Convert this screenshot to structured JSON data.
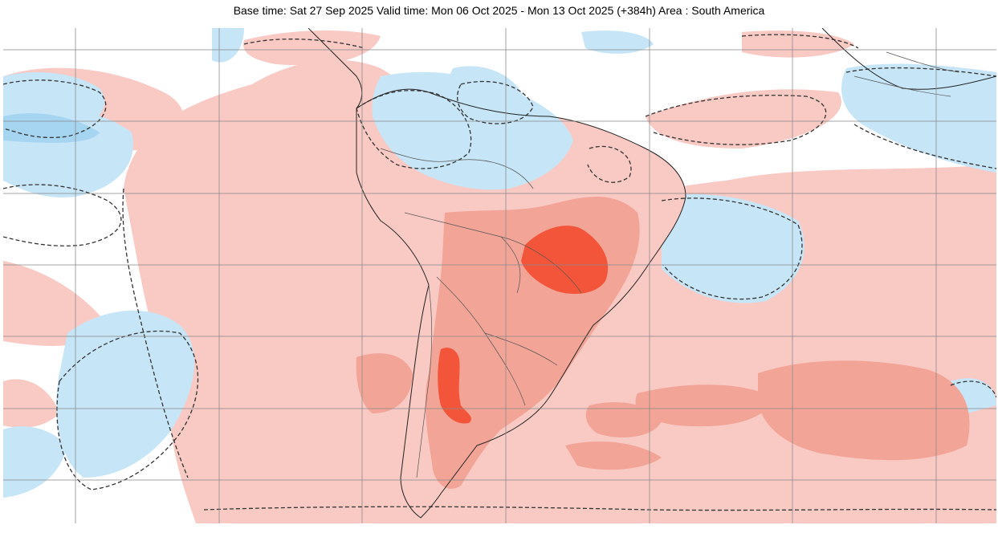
{
  "title": "Base time: Sat 27 Sep 2025 Valid time: Mon 06 Oct 2025 - Mon 13 Oct 2025 (+384h) Area : South America",
  "map": {
    "area": "South America",
    "grid": true,
    "colors": {
      "background": "#ffffff",
      "warm_light": "#f9c9c4",
      "warm_medium": "#f2a497",
      "warm_strong": "#f3553a",
      "cool_light": "#c6e5f7",
      "cool_medium": "#a6d5f1",
      "contour": "#333333",
      "coastline": "#222222",
      "border": "#555555",
      "grid": "#888888"
    }
  }
}
